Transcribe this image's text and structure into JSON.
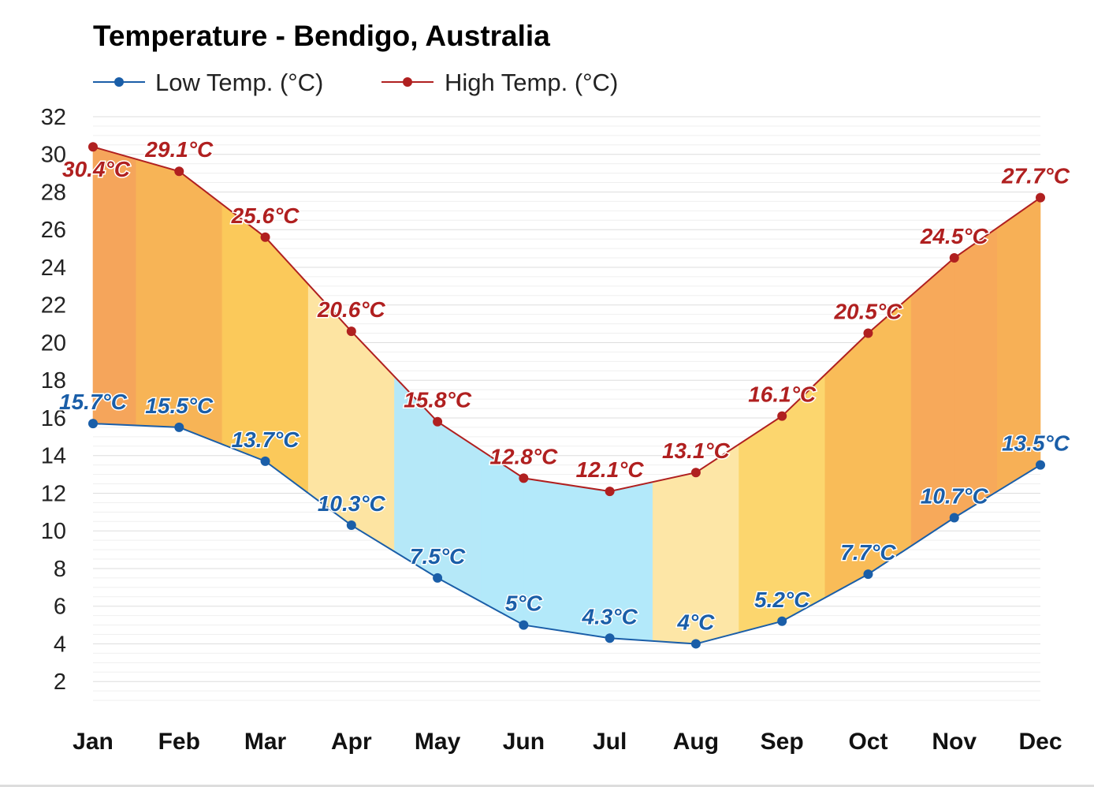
{
  "chart_data": {
    "type": "line",
    "title": "Temperature - Bendigo, Australia",
    "categories": [
      "Jan",
      "Feb",
      "Mar",
      "Apr",
      "May",
      "Jun",
      "Jul",
      "Aug",
      "Sep",
      "Oct",
      "Nov",
      "Dec"
    ],
    "series": [
      {
        "name": "Low Temp. (°C)",
        "color": "#1a5ea8",
        "values": [
          15.7,
          15.5,
          13.7,
          10.3,
          7.5,
          5,
          4.3,
          4,
          5.2,
          7.7,
          10.7,
          13.5
        ],
        "labels": [
          "15.7°C",
          "15.5°C",
          "13.7°C",
          "10.3°C",
          "7.5°C",
          "5°C",
          "4.3°C",
          "4°C",
          "5.2°C",
          "7.7°C",
          "10.7°C",
          "13.5°C"
        ]
      },
      {
        "name": "High Temp. (°C)",
        "color": "#b02020",
        "values": [
          30.4,
          29.1,
          25.6,
          20.6,
          15.8,
          12.8,
          12.1,
          13.1,
          16.1,
          20.5,
          24.5,
          27.7
        ],
        "labels": [
          "30.4°C",
          "29.1°C",
          "25.6°C",
          "20.6°C",
          "15.8°C",
          "12.8°C",
          "12.1°C",
          "13.1°C",
          "16.1°C",
          "20.5°C",
          "24.5°C",
          "27.7°C"
        ]
      }
    ],
    "yticks": [
      "2",
      "4",
      "6",
      "8",
      "10",
      "12",
      "14",
      "16",
      "18",
      "20",
      "22",
      "24",
      "26",
      "28",
      "30",
      "32"
    ],
    "ylim": [
      0.5,
      32
    ],
    "grid": true,
    "legend": "top-left",
    "band_colors": [
      "#f5a55b",
      "#f7b456",
      "#fbc95a",
      "#fde4a2",
      "#b5e8f8",
      "#b3e9fa",
      "#b3e9fa",
      "#fde6a6",
      "#fcd66e",
      "#f9bc58",
      "#f7a95a",
      "#f7b056"
    ]
  }
}
